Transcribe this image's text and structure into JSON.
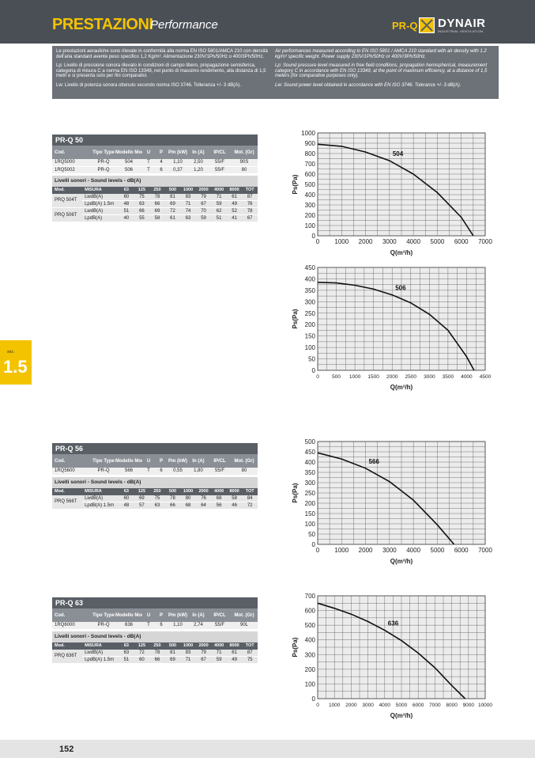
{
  "header": {
    "title": "PRESTAZIONI",
    "subtitle": "Performance",
    "model": "PR-Q",
    "brand": "DYNAIR",
    "brand_sub": "INDUSTRIAL VENTILATION"
  },
  "intro": {
    "it": [
      "Le prestazioni aerauliche sono rilevate in conformità alla norma EN ISO 5801/AMCA 210 con densità dell'aria standard avente peso specifico 1,2 Kg/m³. Alimentazione 230V/1Ph/50Hz o 400/3Ph/50Hz.",
      "Lp: Livello di pressione sonora rilevato in condizioni di campo libero, propagazione semisferica, categoria di misura C a norma EN ISO 13349, nel punto di massimo rendimento, alla distanza di 1,5 metri e si presenta solo per fini comparativi.",
      "Lw: Livello di potenza sonora ottenuto secondo norma ISO 3746. Tolleranza +/- 3 dB(A)."
    ],
    "en": [
      "Air performances measured according to EN ISO 5801 / AMCA 210 standard with air density with 1.2 kg/m³ specific weight. Power supply 230V/1Ph/50Hz or 400V/3Ph/50Hz.",
      "Lp: Sound pressure level measured in free field conditions, propagation hemispherical, measurement category C in accordance with EN ISO 13349, at the point of maximum efficiency, at a distance of 1,5 meters (for comparative purposes only).",
      "Lw: Sound power level obtained in accordance with EN ISO 3746. Tolerance +/- 3 dB(A)."
    ]
  },
  "section": {
    "label": "sez.",
    "number": "1.5"
  },
  "table_headers": {
    "main": [
      "Cod.",
      "Tipo Type",
      "Modello Model",
      "U",
      "P",
      "Pm (kW)",
      "In (A)",
      "IP/CL",
      "Mot. (Gr)"
    ],
    "sound_label": "Livelli sonori - Sound levels - dB(A)",
    "sound": [
      "Mod.",
      "MISURA",
      "63",
      "125",
      "250",
      "500",
      "1000",
      "2000",
      "4000",
      "8000",
      "TOT"
    ]
  },
  "products": [
    {
      "title": "PR-Q 50",
      "rows": [
        [
          "1RQ5000",
          "PR-Q",
          "504",
          "T",
          "4",
          "1,10",
          "2,50",
          "55/F",
          "90S"
        ],
        [
          "1RQ5002",
          "PR-Q",
          "506",
          "T",
          "6",
          "0,37",
          "1,20",
          "55/F",
          "80"
        ]
      ],
      "sound": [
        {
          "mod": "PRQ 504T",
          "lines": [
            [
              "LwdB(A)",
              "60",
              "75",
              "78",
              "81",
              "83",
              "79",
              "71",
              "61",
              "87"
            ],
            [
              "LpdB(A) 1.5m",
              "48",
              "63",
              "66",
              "69",
              "71",
              "67",
              "59",
              "49",
              "76"
            ]
          ]
        },
        {
          "mod": "PRQ 506T",
          "lines": [
            [
              "LwdB(A)",
              "51",
              "66",
              "69",
              "72",
              "74",
              "70",
              "62",
              "52",
              "78"
            ],
            [
              "LpdB(A)",
              "40",
              "55",
              "58",
              "61",
              "63",
              "59",
              "51",
              "41",
              "67"
            ]
          ]
        }
      ]
    },
    {
      "title": "PR-Q 56",
      "rows": [
        [
          "1RQ5600",
          "PR-Q",
          "566",
          "T",
          "6",
          "0,55",
          "1,80",
          "55/F",
          "80"
        ]
      ],
      "sound": [
        {
          "mod": "PRQ 566T",
          "lines": [
            [
              "LwdB(A)",
              "60",
              "69",
              "75",
              "78",
              "80",
              "76",
              "68",
              "58",
              "84"
            ],
            [
              "LpdB(A) 1.5m",
              "48",
              "57",
              "63",
              "66",
              "68",
              "64",
              "56",
              "46",
              "72"
            ]
          ]
        }
      ]
    },
    {
      "title": "PR-Q 63",
      "rows": [
        [
          "1RQ6000",
          "PR-Q",
          "636",
          "T",
          "6",
          "1,10",
          "2,74",
          "55/F",
          "90L"
        ]
      ],
      "sound": [
        {
          "mod": "PRQ 636T",
          "lines": [
            [
              "LwdB(A)",
              "63",
              "72",
              "78",
              "81",
              "83",
              "79",
              "71",
              "61",
              "87"
            ],
            [
              "LpdB(A) 1.5m",
              "51",
              "60",
              "66",
              "69",
              "71",
              "67",
              "59",
              "49",
              "75"
            ]
          ]
        }
      ]
    }
  ],
  "chart_data": [
    {
      "type": "line",
      "ylabel": "Ps(Pa)",
      "xlabel": "Q(m³/h)",
      "xlim": [
        0,
        7000
      ],
      "ylim": [
        0,
        1000
      ],
      "xticks": [
        0,
        1000,
        2000,
        3000,
        4000,
        5000,
        6000,
        7000
      ],
      "yticks": [
        0,
        100,
        200,
        300,
        400,
        500,
        600,
        700,
        800,
        900,
        1000
      ],
      "grid": true,
      "series": [
        {
          "name": "504",
          "x": [
            0,
            1000,
            2000,
            3000,
            4000,
            5000,
            6000,
            6500
          ],
          "y": [
            890,
            870,
            815,
            730,
            600,
            420,
            180,
            0
          ]
        }
      ]
    },
    {
      "type": "line",
      "ylabel": "Ps(Pa)",
      "xlabel": "Q(m³/h)",
      "xlim": [
        0,
        4500
      ],
      "ylim": [
        0,
        450
      ],
      "xticks": [
        0,
        500,
        1000,
        1500,
        2000,
        2500,
        3000,
        3500,
        4000,
        4500
      ],
      "yticks": [
        0,
        50,
        100,
        150,
        200,
        250,
        300,
        350,
        400,
        450
      ],
      "grid": true,
      "series": [
        {
          "name": "506",
          "x": [
            0,
            500,
            1000,
            1500,
            2000,
            2500,
            3000,
            3500,
            4000,
            4200
          ],
          "y": [
            385,
            382,
            372,
            355,
            330,
            295,
            245,
            175,
            60,
            0
          ]
        }
      ]
    },
    {
      "type": "line",
      "ylabel": "Ps(Pa)",
      "xlabel": "Q(m³/h)",
      "xlim": [
        0,
        7000
      ],
      "ylim": [
        0,
        500
      ],
      "xticks": [
        0,
        1000,
        2000,
        3000,
        4000,
        5000,
        6000,
        7000
      ],
      "yticks": [
        0,
        50,
        100,
        150,
        200,
        250,
        300,
        350,
        400,
        450,
        500
      ],
      "grid": true,
      "series": [
        {
          "name": "566",
          "x": [
            0,
            1000,
            2000,
            3000,
            4000,
            5000,
            5700
          ],
          "y": [
            445,
            415,
            370,
            305,
            215,
            95,
            0
          ]
        }
      ]
    },
    {
      "type": "line",
      "ylabel": "Ps(Pa)",
      "xlabel": "Q(m³/h)",
      "xlim": [
        0,
        10000
      ],
      "ylim": [
        0,
        700
      ],
      "xticks": [
        0,
        1000,
        2000,
        3000,
        4000,
        5000,
        6000,
        7000,
        8000,
        9000,
        10000
      ],
      "yticks": [
        0,
        100,
        200,
        300,
        400,
        500,
        600,
        700
      ],
      "grid": true,
      "series": [
        {
          "name": "636",
          "x": [
            0,
            1000,
            2000,
            3000,
            4000,
            5000,
            6000,
            7000,
            8000,
            8800
          ],
          "y": [
            650,
            615,
            575,
            525,
            465,
            395,
            310,
            210,
            90,
            0
          ]
        }
      ]
    }
  ],
  "footer": {
    "page": "152"
  },
  "colors": {
    "yellow": "#f3c300",
    "dark": "#4a4f56",
    "band": "#6d7278"
  }
}
